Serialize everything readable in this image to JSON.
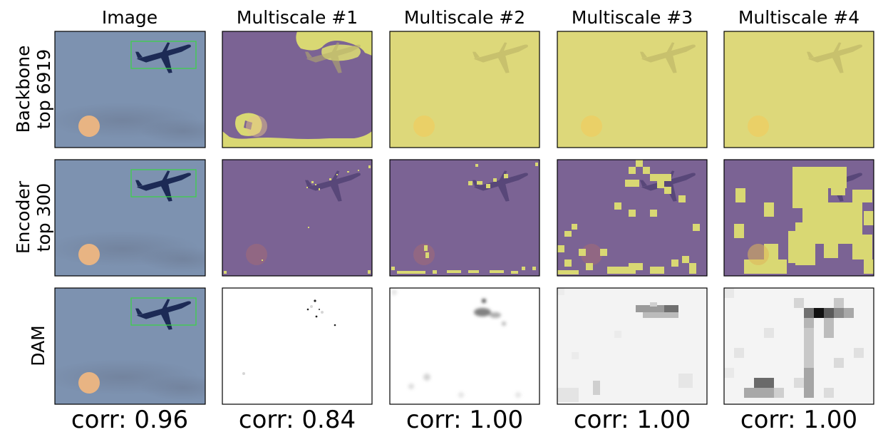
{
  "figure": {
    "column_titles": [
      "Image",
      "Multiscale #1",
      "Multiscale #2",
      "Multiscale #3",
      "Multiscale #4"
    ],
    "rows": [
      {
        "label_line1": "Backbone",
        "label_line2": "top 6919"
      },
      {
        "label_line1": "Encoder",
        "label_line2": "top 300"
      },
      {
        "label_line1": "DAM",
        "label_line2": ""
      }
    ],
    "corr_labels": [
      "corr: 0.96",
      "corr: 0.84",
      "corr: 1.00",
      "corr: 1.00",
      "corr: 1.00"
    ]
  },
  "colors": {
    "sky": "#7d92b0",
    "selected_yellow": "#d9d873",
    "unselected_purple": "#7b6394",
    "bbox_green": "#3ecf4a",
    "heat_dark": "#111111"
  }
}
